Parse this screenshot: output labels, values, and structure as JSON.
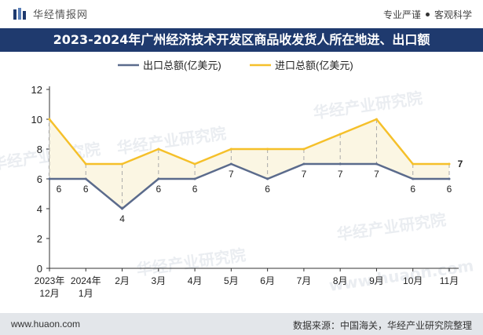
{
  "header": {
    "brand_name": "华经情报网",
    "slogan_left": "专业严谨",
    "slogan_right": "客观科学"
  },
  "footer": {
    "website": "www.huaon.com",
    "source": "数据来源：中国海关，华经产业研究院整理"
  },
  "watermarks": [
    "华经产业研究院",
    "www.huaon.com"
  ],
  "colors": {
    "title_bg": "#1f3a6e",
    "export_line": "#5b6b8c",
    "import_line": "#f5c02a",
    "fill": "#fbf6e3"
  },
  "chart_data": {
    "type": "line",
    "title": "2023-2024年广州经济技术开发区商品收发货人所在地进、出口额",
    "categories": [
      "2023年\n12月",
      "2024年\n1月",
      "2月",
      "3月",
      "4月",
      "5月",
      "6月",
      "7月",
      "8月",
      "9月",
      "10月",
      "11月"
    ],
    "series": [
      {
        "name": "出口总额(亿美元)",
        "values": [
          6,
          6,
          4,
          6,
          6,
          7,
          6,
          7,
          7,
          7,
          6,
          6
        ]
      },
      {
        "name": "进口总额(亿美元)",
        "values": [
          10,
          7,
          7,
          8,
          7,
          8,
          8,
          8,
          9,
          10,
          7,
          7
        ]
      }
    ],
    "import_labels": {
      "11": "7"
    },
    "ylim": [
      0,
      12
    ],
    "yticks": [
      0,
      2,
      4,
      6,
      8,
      10,
      12
    ],
    "legend_position": "top-center"
  }
}
